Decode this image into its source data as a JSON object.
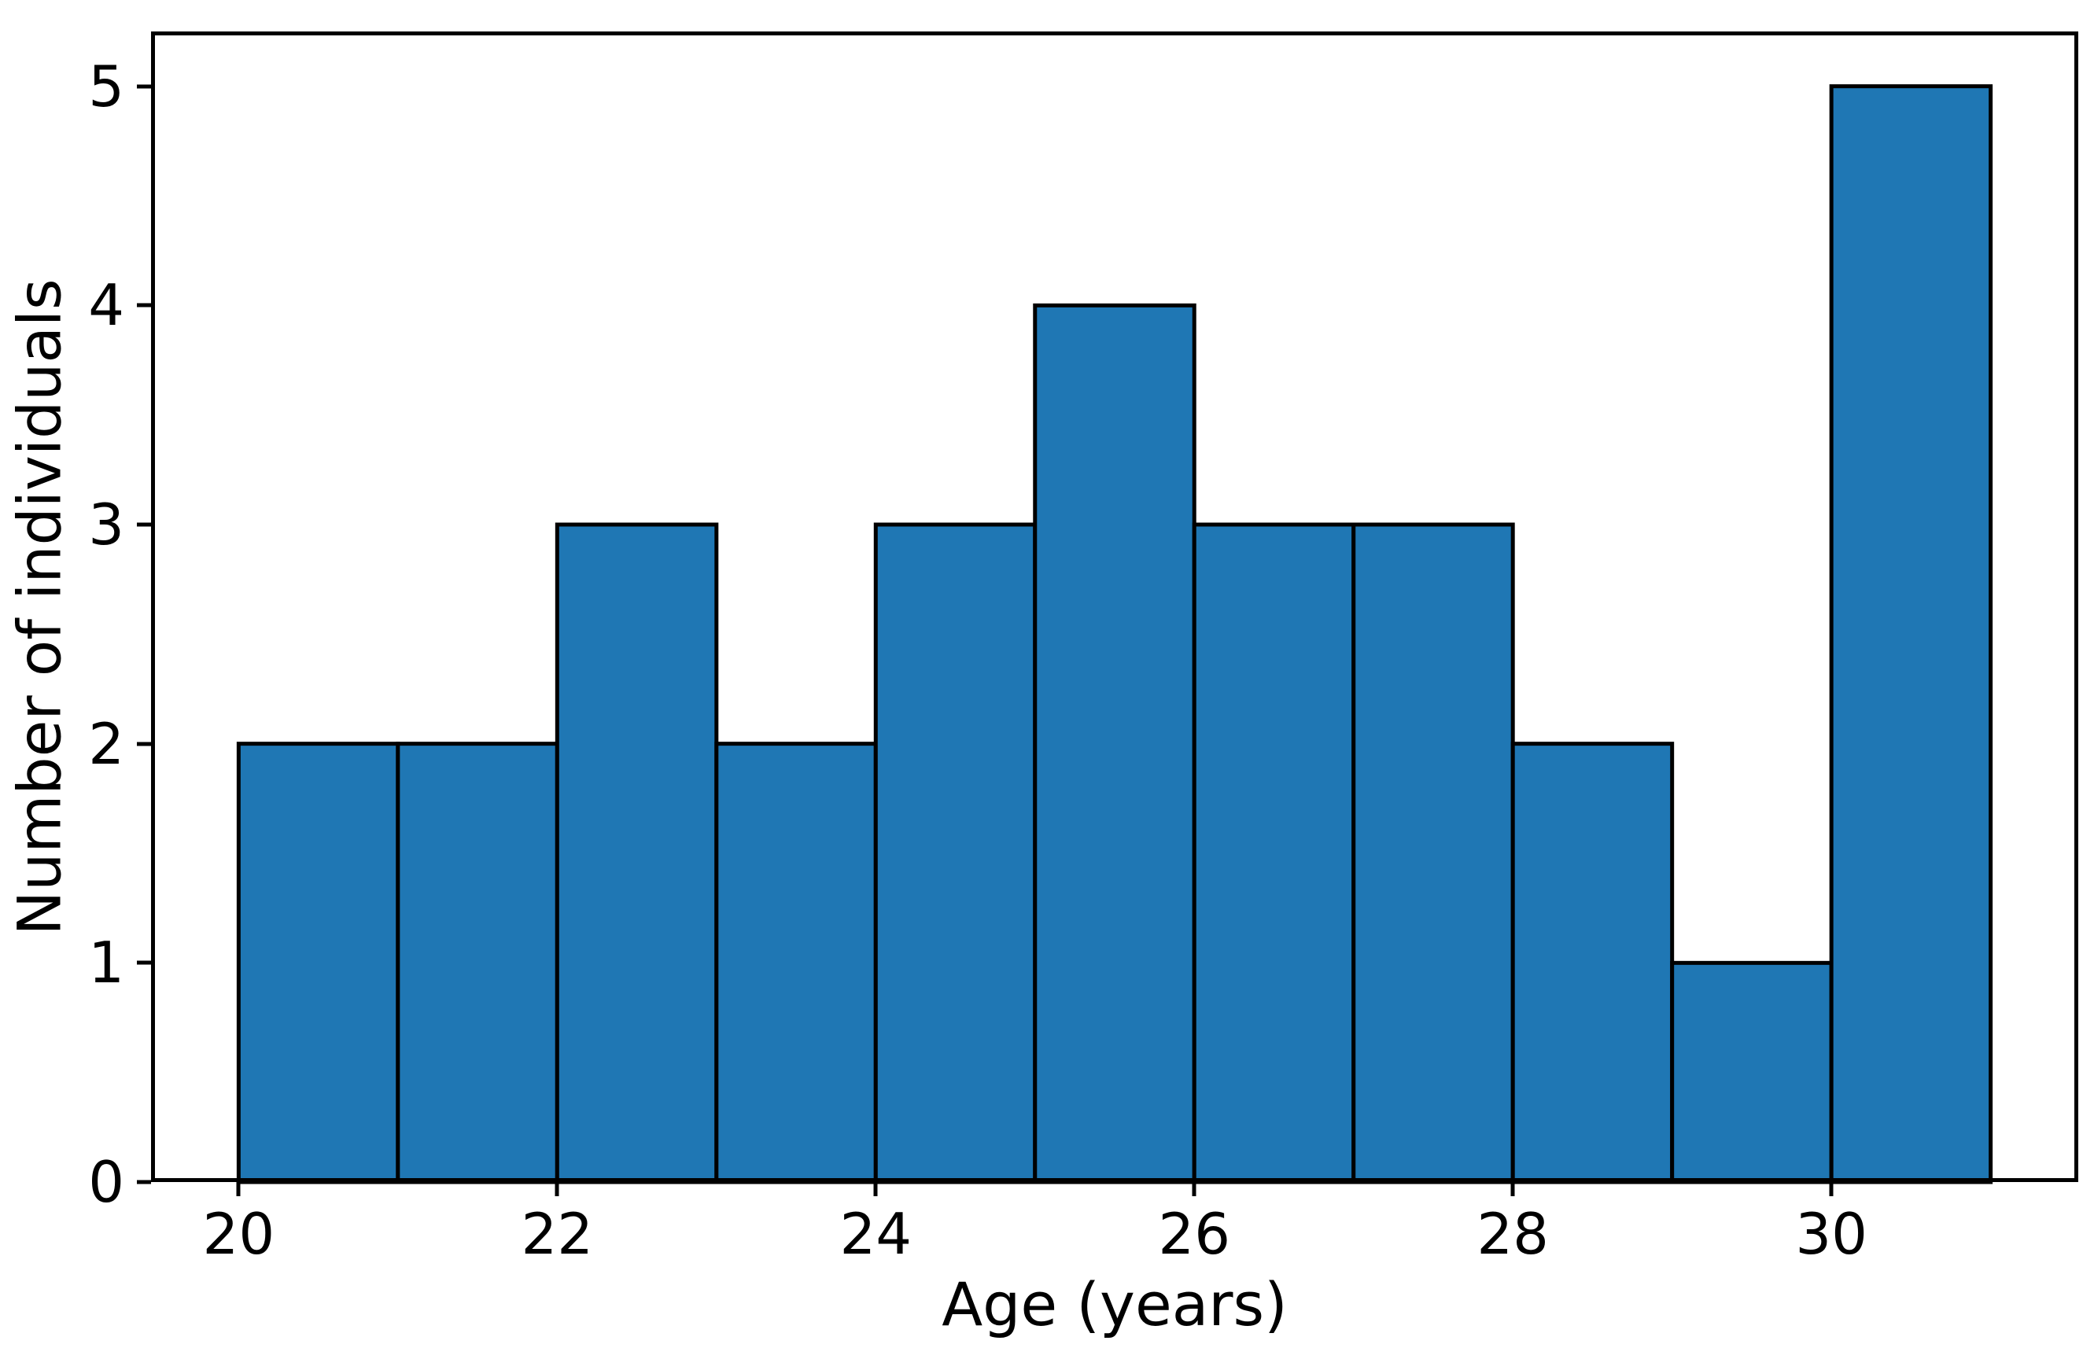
{
  "figure": {
    "background": "#ffffff"
  },
  "chart_data": {
    "type": "bar",
    "subtype": "histogram",
    "title": "",
    "xlabel": "Age (years)",
    "ylabel": "Number of individuals",
    "bin_edges": [
      20,
      21,
      22,
      23,
      24,
      25,
      26,
      27,
      28,
      29,
      30,
      31
    ],
    "values": [
      2,
      2,
      3,
      2,
      3,
      4,
      3,
      3,
      2,
      1,
      5
    ],
    "xticks": [
      20,
      22,
      24,
      26,
      28,
      30
    ],
    "yticks": [
      0,
      1,
      2,
      3,
      4,
      5
    ],
    "xlim": [
      19.45,
      31.55
    ],
    "ylim": [
      0,
      5.25
    ],
    "grid": false,
    "legend": false,
    "bar_fill": "#1f77b4",
    "bar_edge": "#000000",
    "spine_color": "#000000"
  }
}
